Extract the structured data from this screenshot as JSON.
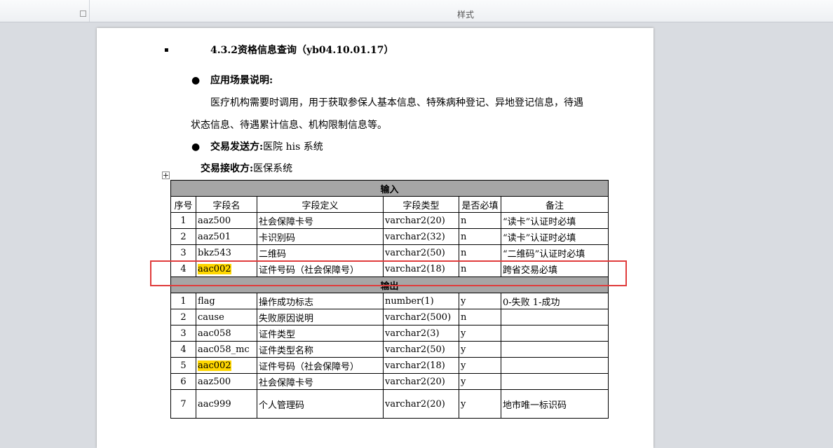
{
  "ribbon": {
    "label": "样式"
  },
  "doc": {
    "heading": "4.3.2资格信息查询（yb04.10.01.17）",
    "scenario": {
      "label": "应用场景说明:",
      "lines": [
        "医疗机构需要时调用，用于获取参保人基本信息、特殊病种登记、异地登记信息，待遇",
        "状态信息、待遇累计信息、机构限制信息等。"
      ]
    },
    "sender": {
      "label": "交易发送方:",
      "value": "医院 his 系统"
    },
    "receiver": {
      "label": "交易接收方:",
      "value": "医保系统"
    },
    "table": {
      "highlight_color": "#ffd700",
      "input_title": "输入",
      "columns": [
        "序号",
        "字段名",
        "字段定义",
        "字段类型",
        "是否必填",
        "备注"
      ],
      "input_rows": [
        {
          "cells": [
            1,
            "aaz500",
            "社会保障卡号",
            "varchar2(20)",
            "n",
            "“读卡”认证时必填"
          ],
          "highlight": false
        },
        {
          "cells": [
            2,
            "aaz501",
            "卡识别码",
            "varchar2(32)",
            "n",
            "“读卡”认证时必填"
          ],
          "highlight": false
        },
        {
          "cells": [
            3,
            "bkz543",
            "二维码",
            "varchar2(50)",
            "n",
            "“二维码”认证时必填"
          ],
          "highlight": false
        },
        {
          "cells": [
            4,
            "aac002",
            "证件号码（社会保障号）",
            "varchar2(18)",
            "n",
            "跨省交易必填"
          ],
          "highlight": true
        }
      ],
      "output_title": "输出",
      "output_rows": [
        {
          "cells": [
            1,
            "flag",
            "操作成功标志",
            "number(1)",
            "y",
            "0-失败 1-成功"
          ],
          "highlight": false
        },
        {
          "cells": [
            2,
            "cause",
            "失败原因说明",
            "varchar2(500)",
            "n",
            null
          ],
          "highlight": false
        },
        {
          "cells": [
            3,
            "aac058",
            "证件类型",
            "varchar2(3)",
            "y",
            null
          ],
          "highlight": false
        },
        {
          "cells": [
            4,
            "aac058_mc",
            "证件类型名称",
            "varchar2(50)",
            "y",
            null
          ],
          "highlight": false
        },
        {
          "cells": [
            5,
            "aac002",
            "证件号码（社会保障号）",
            "varchar2(18)",
            "y",
            null
          ],
          "highlight": true
        },
        {
          "cells": [
            6,
            "aaz500",
            "社会保障卡号",
            "varchar2(20)",
            "y",
            null
          ],
          "highlight": false
        },
        {
          "cells": [
            7,
            "aac999",
            "个人管理码",
            "varchar2(20)",
            "y",
            "地市唯一标识码"
          ],
          "highlight": false
        }
      ]
    }
  }
}
